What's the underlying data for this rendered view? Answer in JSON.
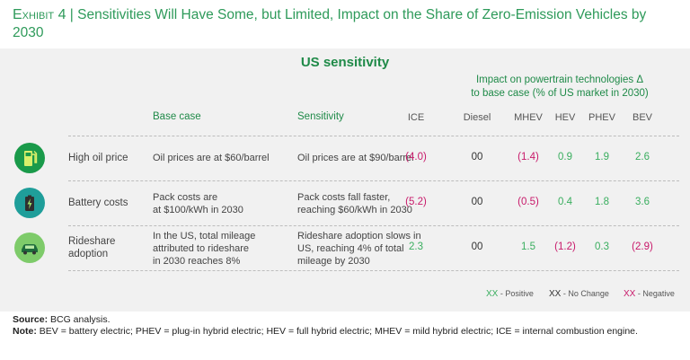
{
  "exhibit": {
    "label": "Exhibit 4",
    "separator": " | ",
    "title": "Sensitivities Will Have Some, but Limited, Impact on the Share of Zero-Emission Vehicles by 2030"
  },
  "panel_title": "US sensitivity",
  "impact_header_line1": "Impact on powertrain technologies Δ",
  "impact_header_line2": "to base case (% of US market in 2030)",
  "columns": {
    "base_case": "Base case",
    "sensitivity": "Sensitivity"
  },
  "colors": {
    "positive": "#3aae5f",
    "negative": "#c8196a",
    "no_change": "#333333",
    "accent": "#1f8a48"
  },
  "chart_data": {
    "type": "table",
    "technologies": [
      "ICE",
      "Diesel",
      "MHEV",
      "HEV",
      "PHEV",
      "BEV"
    ],
    "rows": [
      {
        "icon": "fuel-pump-icon",
        "lever": [
          "High oil price"
        ],
        "base": [
          "Oil prices are at $60/barrel"
        ],
        "sensitivity": [
          "Oil prices are at $90/barrel"
        ],
        "values": [
          {
            "text": "(4.0)",
            "kind": "neg"
          },
          {
            "text": "00",
            "kind": "nc"
          },
          {
            "text": "(1.4)",
            "kind": "neg"
          },
          {
            "text": "0.9",
            "kind": "pos"
          },
          {
            "text": "1.9",
            "kind": "pos"
          },
          {
            "text": "2.6",
            "kind": "pos"
          }
        ]
      },
      {
        "icon": "battery-icon",
        "lever": [
          "Battery costs"
        ],
        "base": [
          "Pack costs are",
          "at $100/kWh in 2030"
        ],
        "sensitivity": [
          "Pack costs fall faster,",
          "reaching $60/kWh in 2030"
        ],
        "values": [
          {
            "text": "(5.2)",
            "kind": "neg"
          },
          {
            "text": "00",
            "kind": "nc"
          },
          {
            "text": "(0.5)",
            "kind": "neg"
          },
          {
            "text": "0.4",
            "kind": "pos"
          },
          {
            "text": "1.8",
            "kind": "pos"
          },
          {
            "text": "3.6",
            "kind": "pos"
          }
        ]
      },
      {
        "icon": "car-icon",
        "lever": [
          "Rideshare",
          "adoption"
        ],
        "base": [
          "In the US, total mileage",
          "attributed to rideshare",
          "in 2030 reaches 8%"
        ],
        "sensitivity": [
          "Rideshare adoption slows in",
          "US, reaching 4% of total",
          "mileage by 2030"
        ],
        "values": [
          {
            "text": "2.3",
            "kind": "pos"
          },
          {
            "text": "00",
            "kind": "nc"
          },
          {
            "text": "1.5",
            "kind": "pos"
          },
          {
            "text": "(1.2)",
            "kind": "neg"
          },
          {
            "text": "0.3",
            "kind": "pos"
          },
          {
            "text": "(2.9)",
            "kind": "neg"
          }
        ]
      }
    ]
  },
  "legend": [
    {
      "key": "XX",
      "label": "- Positive",
      "kind": "pos"
    },
    {
      "key": "XX",
      "label": "- No Change",
      "kind": "nc"
    },
    {
      "key": "XX",
      "label": "- Negative",
      "kind": "neg"
    }
  ],
  "source": {
    "label": "Source:",
    "text": " BCG analysis."
  },
  "note": {
    "label": "Note:",
    "text": " BEV = battery electric; PHEV = plug-in hybrid electric; HEV = full hybrid electric; MHEV = mild hybrid electric; ICE = internal combustion engine."
  }
}
